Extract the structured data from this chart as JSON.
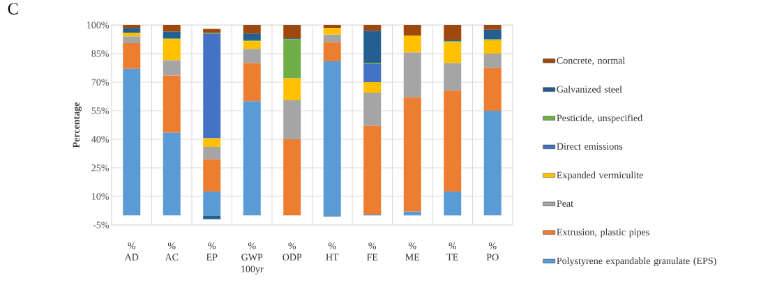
{
  "chart_data": {
    "type": "bar",
    "stacked": true,
    "ylabel": "Percentage",
    "categories": [
      "AD",
      "AC",
      "EP",
      "GWP 100yr",
      "ODP",
      "HT",
      "FE",
      "ME",
      "TE",
      "PO"
    ],
    "series": [
      {
        "name": "Polystyrene expandable granulate (EPS)",
        "color": "#5b9bd5",
        "values": [
          77,
          43.5,
          12.5,
          60,
          0,
          81,
          0.5,
          2,
          12.5,
          55
        ]
      },
      {
        "name": "Extrusion, plastic pipes",
        "color": "#ed7d31",
        "values": [
          13.5,
          30,
          17,
          20,
          40,
          10,
          46.5,
          60,
          53,
          22.5
        ]
      },
      {
        "name": "Peat",
        "color": "#a5a5a5",
        "values": [
          3.5,
          8,
          6.5,
          7.5,
          20.5,
          4,
          17.5,
          23.5,
          14.5,
          7.5
        ]
      },
      {
        "name": "Expanded vermiculite",
        "color": "#ffc000",
        "values": [
          2,
          11,
          4.5,
          4,
          11.5,
          3.5,
          5.5,
          9,
          11,
          7
        ]
      },
      {
        "name": "Direct emissions",
        "color": "#4472c4",
        "values": [
          0,
          0,
          55,
          0,
          0,
          0,
          9.5,
          0,
          0,
          0
        ]
      },
      {
        "name": "Pesticide, unspecified",
        "color": "#70ad47",
        "values": [
          0,
          0.5,
          0.5,
          0.5,
          20.5,
          0,
          0.5,
          0,
          0.5,
          0.5
        ]
      },
      {
        "name": "Galvanized steel",
        "color": "#255e91",
        "values": [
          2.5,
          3.5,
          -2,
          3.5,
          0.5,
          -0.5,
          17,
          0,
          0.5,
          5
        ]
      },
      {
        "name": "Concrete, normal",
        "color": "#9e480e",
        "values": [
          1.5,
          3.5,
          2,
          4.5,
          7,
          1.5,
          3,
          5.5,
          8,
          2.5
        ]
      }
    ],
    "ylim": [
      -5,
      100
    ],
    "yticks": [
      {
        "value": -5,
        "label": "-5%"
      },
      {
        "value": 10,
        "label": "10%"
      },
      {
        "value": 25,
        "label": "25%"
      },
      {
        "value": 40,
        "label": "40%"
      },
      {
        "value": 55,
        "label": "55%"
      },
      {
        "value": 70,
        "label": "70%"
      },
      {
        "value": 85,
        "label": "85%"
      },
      {
        "value": 100,
        "label": "100%"
      }
    ],
    "grid": true,
    "legend": "right",
    "annotations": [
      "C",
      "%",
      "%",
      "%",
      "%",
      "%",
      "%",
      "%",
      "%",
      "%",
      "%"
    ]
  }
}
